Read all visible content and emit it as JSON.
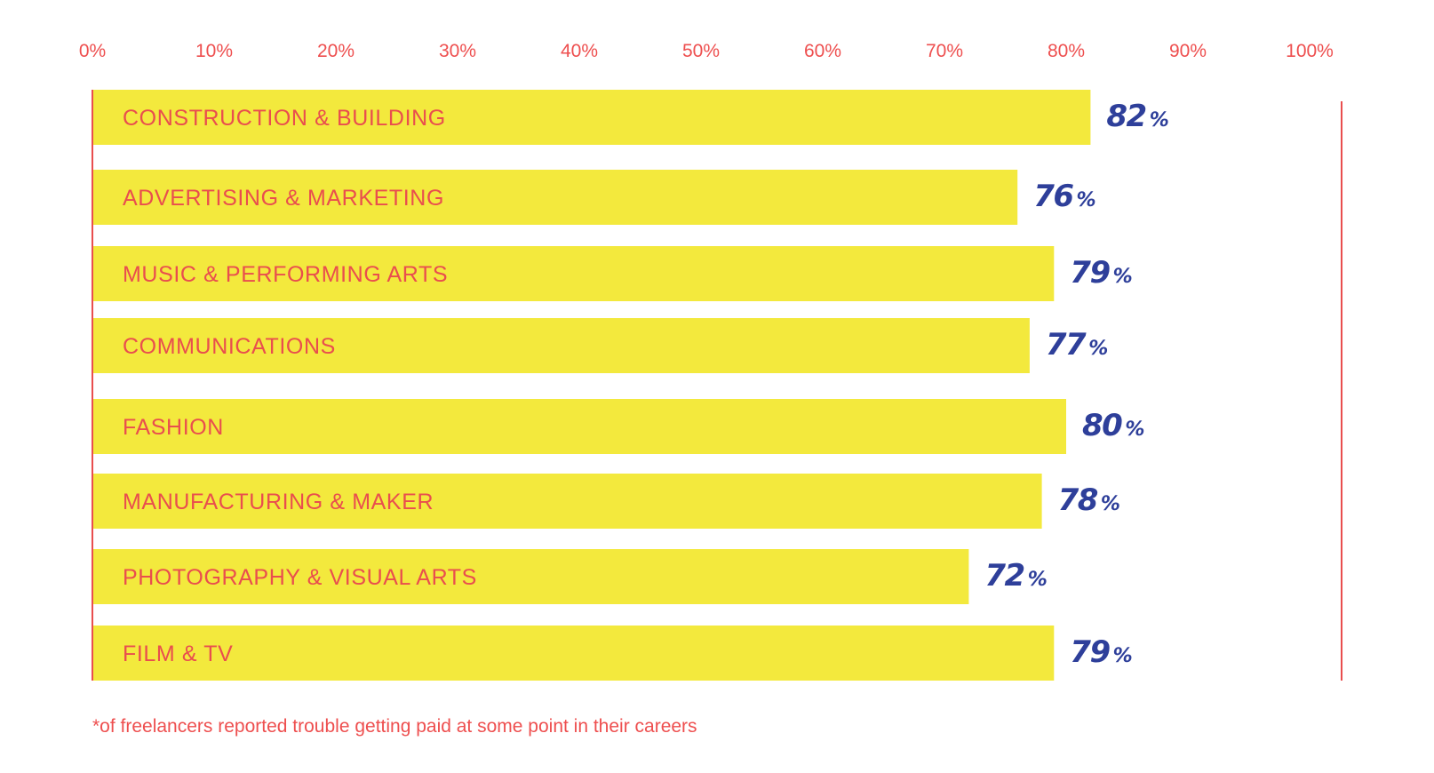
{
  "chart_data": {
    "type": "bar",
    "orientation": "horizontal",
    "categories": [
      "CONSTRUCTION & BUILDING",
      "ADVERTISING & MARKETING",
      "MUSIC & PERFORMING ARTS",
      "COMMUNICATIONS",
      "FASHION",
      "MANUFACTURING & MAKER",
      "PHOTOGRAPHY & VISUAL ARTS",
      "FILM & TV"
    ],
    "values": [
      82,
      76,
      79,
      77,
      80,
      78,
      72,
      79
    ],
    "value_labels": [
      "82",
      "76",
      "79",
      "77",
      "80",
      "78",
      "72",
      "79"
    ],
    "value_suffix": "%",
    "x_ticks": [
      "0%",
      "10%",
      "20%",
      "30%",
      "40%",
      "50%",
      "60%",
      "70%",
      "80%",
      "90%",
      "100%"
    ],
    "xlim": [
      0,
      100
    ],
    "grid": false,
    "legend": "none",
    "colors": {
      "bar": "#f3e93d",
      "axis": "#e94e4e",
      "category_text": "#e94e4e",
      "value_text": "#2e3f9a",
      "tick_text": "#ee4f4f"
    }
  },
  "footnote": "*of freelancers reported trouble getting paid at some point in their careers"
}
